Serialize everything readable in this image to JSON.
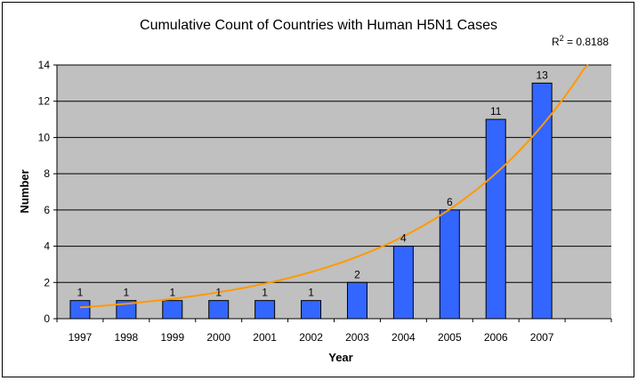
{
  "chart_data": {
    "type": "bar",
    "title": "Cumulative Count of Countries with Human H5N1 Cases",
    "xlabel": "Year",
    "ylabel": "Number",
    "categories": [
      "1997",
      "1998",
      "1999",
      "2000",
      "2001",
      "2002",
      "2003",
      "2004",
      "2005",
      "2006",
      "2007"
    ],
    "values": [
      1,
      1,
      1,
      1,
      1,
      1,
      2,
      4,
      6,
      11,
      13
    ],
    "data_labels": [
      "1",
      "1",
      "1",
      "1",
      "1",
      "1",
      "2",
      "4",
      "6",
      "11",
      "13"
    ],
    "ylim": [
      0,
      14
    ],
    "yticks": [
      "0",
      "2",
      "4",
      "6",
      "8",
      "10",
      "12",
      "14"
    ],
    "grid": true,
    "trendline": {
      "type": "exponential",
      "r_squared_label": "R",
      "r_squared_exponent": "2",
      "r_squared_value": " = 0.8188"
    },
    "colors": {
      "bar_fill": "#3366FF",
      "bar_stroke": "#000000",
      "plot_bg": "#C0C0C0",
      "gridline": "#000000",
      "trendline": "#FF9900"
    }
  }
}
